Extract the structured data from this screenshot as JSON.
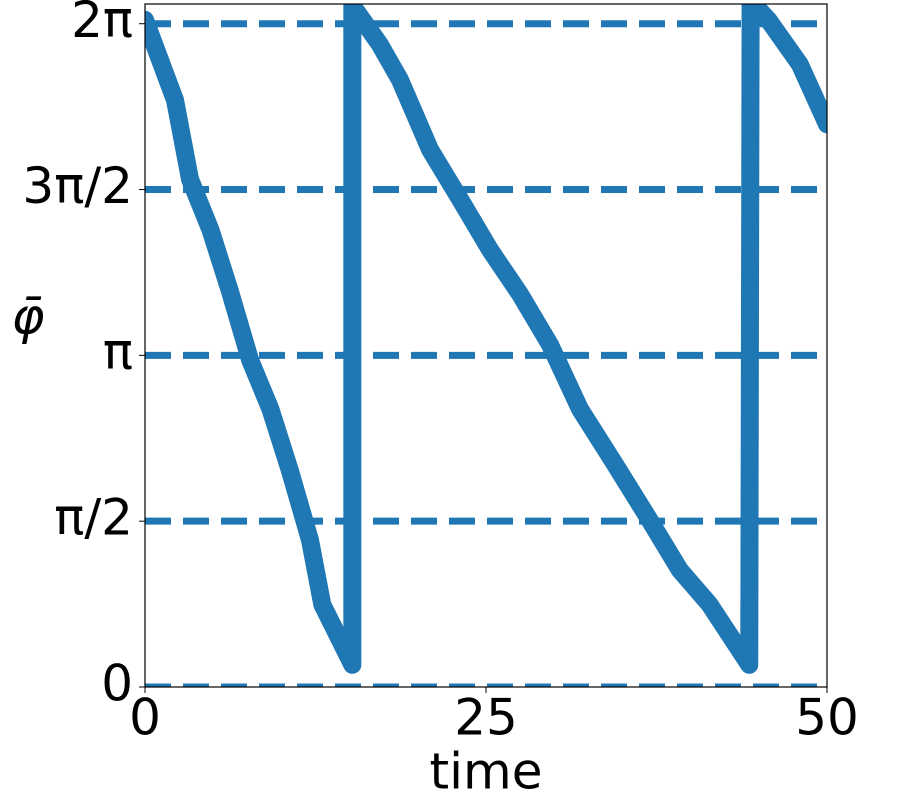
{
  "chart_data": {
    "type": "line",
    "xlabel": "time",
    "ylabel": "φ̄",
    "x": [
      0,
      1.1,
      2.2,
      3.3,
      4.8,
      6.2,
      7.7,
      9.2,
      10.6,
      12.1,
      13.0,
      15.2,
      15.2,
      15.5,
      17.2,
      18.7,
      20.9,
      23.1,
      25.3,
      27.5,
      29.7,
      31.9,
      34.5,
      37.0,
      39.2,
      41.4,
      44.3,
      44.4,
      45.7,
      48.0,
      50.0
    ],
    "series": [
      {
        "color": "#1f77b4",
        "values": [
          6.32,
          5.94,
          5.56,
          4.81,
          4.33,
          3.76,
          3.1,
          2.63,
          2.06,
          1.39,
          0.78,
          0.21,
          6.45,
          6.4,
          6.09,
          5.75,
          5.09,
          4.62,
          4.14,
          3.72,
          3.24,
          2.63,
          2.1,
          1.58,
          1.11,
          0.78,
          0.21,
          6.5,
          6.32,
          5.9,
          5.33
        ]
      }
    ],
    "xlim": [
      0,
      50
    ],
    "xticks": [
      0,
      25,
      50
    ],
    "ylim": [
      0,
      6.47
    ],
    "yticks": [
      0,
      {
        "value": 1.5708,
        "label": "π/2"
      },
      {
        "value": 3.1416,
        "label": "π"
      },
      {
        "value": 4.7124,
        "label": "3π/2"
      },
      {
        "value": 6.2832,
        "label": "2π"
      }
    ],
    "grid": true
  }
}
